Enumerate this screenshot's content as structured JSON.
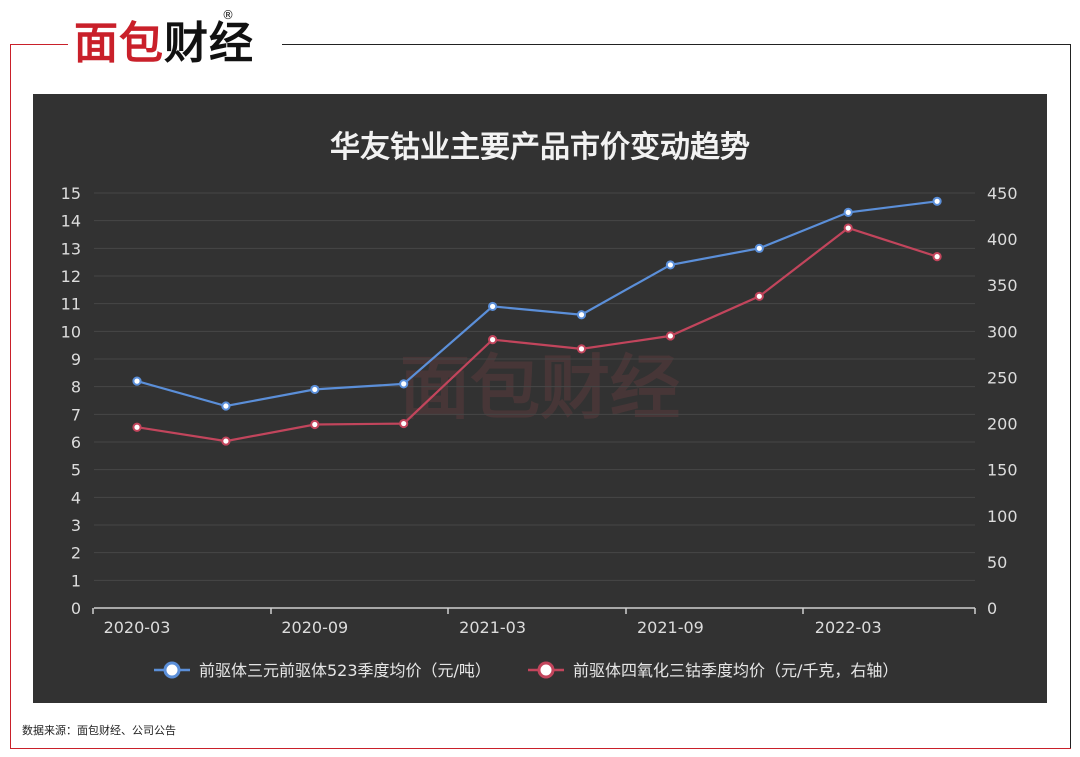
{
  "logo": {
    "text_red": "面包",
    "text_black": "财经",
    "registered": "®"
  },
  "source_note": "数据来源：面包财经、公司公告",
  "watermark": "面包财经",
  "colors": {
    "panel": "#323232",
    "series_blue": "#5b8fd9",
    "series_red": "#c2455c",
    "brand_red": "#c9202a"
  },
  "chart_data": {
    "type": "line",
    "title": "华友钴业主要产品市价变动趋势",
    "x": [
      "2020-03",
      "2020-06",
      "2020-09",
      "2020-12",
      "2021-03",
      "2021-06",
      "2021-09",
      "2021-12",
      "2022-03",
      "2022-06"
    ],
    "x_tick_labels": [
      "2020-03",
      "2020-09",
      "2021-03",
      "2021-09",
      "2022-03"
    ],
    "y_left": {
      "range": [
        0,
        15
      ],
      "ticks": [
        "0",
        "1",
        "2",
        "3",
        "4",
        "5",
        "6",
        "7",
        "8",
        "9",
        "10",
        "11",
        "12",
        "13",
        "14",
        "15"
      ]
    },
    "y_right": {
      "range": [
        0,
        450
      ],
      "ticks": [
        "0",
        "50",
        "100",
        "150",
        "200",
        "250",
        "300",
        "350",
        "400",
        "450"
      ]
    },
    "grid": true,
    "legend_position": "bottom",
    "series": [
      {
        "name": "前驱体三元前驱体523季度均价（元/吨）",
        "axis": "left",
        "values": [
          8.2,
          7.3,
          7.9,
          8.1,
          10.9,
          10.6,
          12.4,
          13.0,
          14.3,
          14.7
        ]
      },
      {
        "name": "前驱体四氧化三钴季度均价（元/千克，右轴）",
        "axis": "right",
        "values": [
          196,
          181,
          199,
          200,
          291,
          281,
          295,
          338,
          412,
          381
        ]
      }
    ]
  }
}
